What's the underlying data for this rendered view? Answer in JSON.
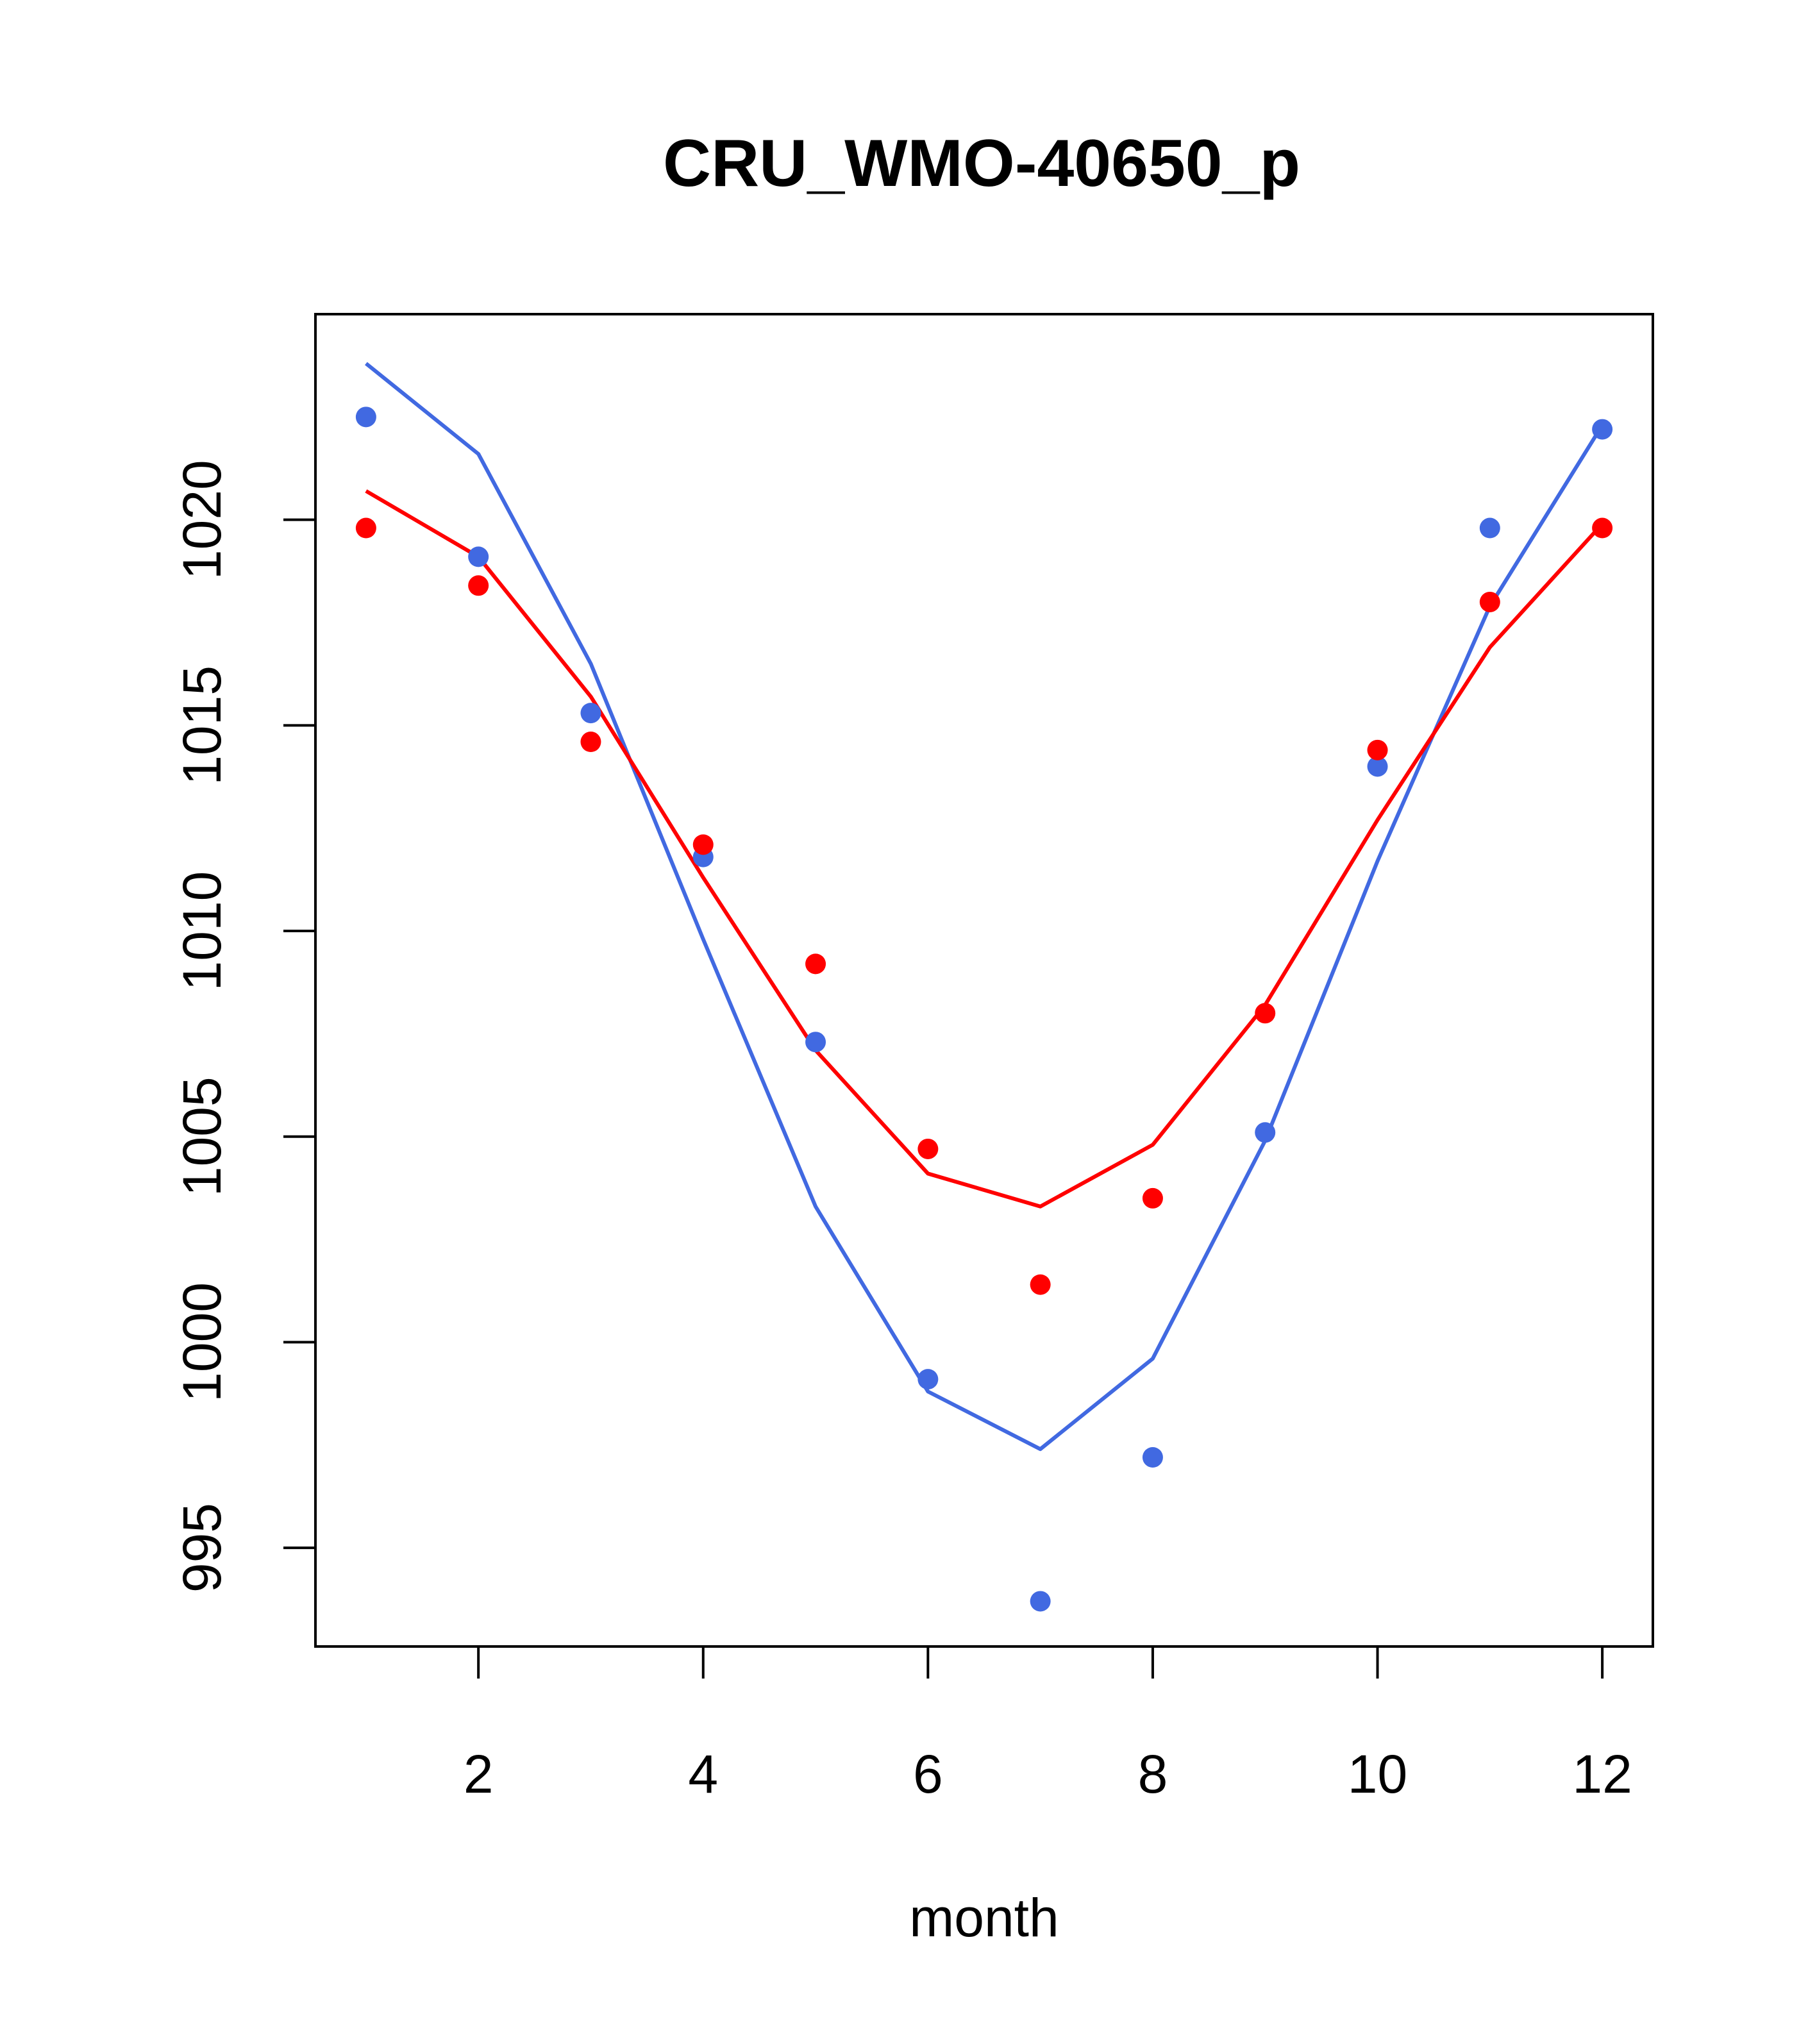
{
  "chart_data": {
    "type": "line",
    "title": "CRU_WMO-40650_p",
    "xlabel": "month",
    "ylabel": "",
    "xlim": [
      0.55,
      12.45
    ],
    "ylim": [
      992.6,
      1025.0
    ],
    "x_ticks": [
      2,
      4,
      6,
      8,
      10,
      12
    ],
    "y_ticks": [
      995,
      1000,
      1005,
      1010,
      1015,
      1020
    ],
    "x": [
      1,
      2,
      3,
      4,
      5,
      6,
      7,
      8,
      9,
      10,
      11,
      12
    ],
    "series": [
      {
        "name": "blue points",
        "kind": "points",
        "color": "#4169e1",
        "values": [
          1022.5,
          1019.1,
          1015.3,
          1011.8,
          1007.3,
          999.1,
          993.7,
          997.2,
          1005.1,
          1014.0,
          1019.8,
          1022.2
        ]
      },
      {
        "name": "red points",
        "kind": "points",
        "color": "#ff0000",
        "values": [
          1019.8,
          1018.4,
          1014.6,
          1012.1,
          1009.2,
          1004.7,
          1001.4,
          1003.5,
          1008.0,
          1014.4,
          1018.0,
          1019.8
        ]
      },
      {
        "name": "blue line",
        "kind": "line",
        "color": "#4169e1",
        "values": [
          1023.8,
          1021.6,
          1016.5,
          1009.8,
          1003.3,
          998.8,
          997.4,
          999.6,
          1004.9,
          1011.7,
          1017.9,
          1022.3
        ]
      },
      {
        "name": "red line",
        "kind": "line",
        "color": "#ff0000",
        "values": [
          1020.7,
          1019.1,
          1015.7,
          1011.3,
          1007.1,
          1004.1,
          1003.3,
          1004.8,
          1008.2,
          1012.7,
          1016.9,
          1019.9
        ]
      }
    ]
  }
}
